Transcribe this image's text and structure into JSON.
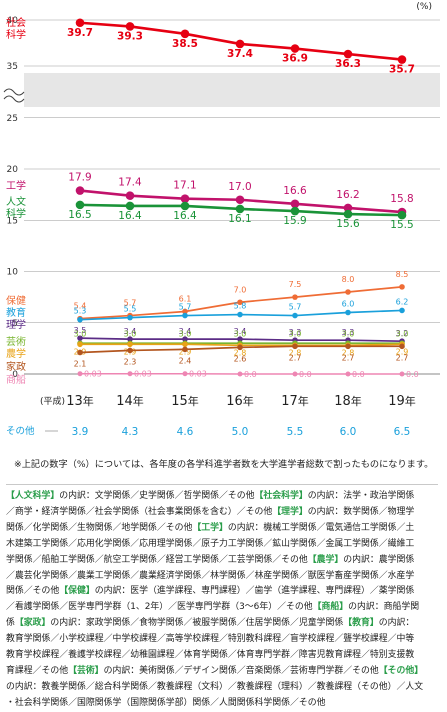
{
  "chart_data": {
    "type": "line",
    "unit": "(%)",
    "x": [
      "13年",
      "14年",
      "15年",
      "16年",
      "17年",
      "18年",
      "19年"
    ],
    "era": "(平成)",
    "yticks_upper": [
      35,
      40
    ],
    "yticks_lower": [
      0,
      5,
      10,
      15,
      20,
      25
    ],
    "ylim": [
      0,
      41
    ],
    "series": [
      {
        "name": "社会\n科学",
        "color": "#e60012",
        "values": [
          39.7,
          39.3,
          38.5,
          37.4,
          36.9,
          36.3,
          35.7
        ]
      },
      {
        "name": "工学",
        "color": "#c1126b",
        "values": [
          17.9,
          17.4,
          17.1,
          17.0,
          16.6,
          16.2,
          15.8
        ]
      },
      {
        "name": "人文\n科学",
        "color": "#1a9338",
        "values": [
          16.5,
          16.4,
          16.4,
          16.1,
          15.9,
          15.6,
          15.5
        ]
      },
      {
        "name": "保健",
        "color": "#ef6c35",
        "values": [
          5.4,
          5.7,
          6.1,
          7.0,
          7.5,
          8.0,
          8.5
        ]
      },
      {
        "name": "教育",
        "color": "#1aa0db",
        "values": [
          5.3,
          5.5,
          5.7,
          5.8,
          5.7,
          6.0,
          6.2
        ]
      },
      {
        "name": "理学",
        "color": "#5b2c86",
        "values": [
          3.5,
          3.4,
          3.4,
          3.4,
          3.3,
          3.3,
          3.2
        ]
      },
      {
        "name": "芸術",
        "color": "#79b52f",
        "values": [
          3.0,
          3.0,
          3.0,
          3.0,
          3.0,
          3.0,
          3.0
        ]
      },
      {
        "name": "農学",
        "color": "#e8a317",
        "values": [
          2.9,
          2.9,
          2.9,
          2.8,
          2.8,
          2.8,
          2.9
        ]
      },
      {
        "name": "家政",
        "color": "#b3561f",
        "values": [
          2.1,
          2.3,
          2.4,
          2.6,
          2.7,
          2.7,
          2.7
        ]
      },
      {
        "name": "商船",
        "color": "#ee86b3",
        "values": [
          0.03,
          0.03,
          0.03,
          0.0,
          0.0,
          0.0,
          0.0
        ]
      }
    ],
    "other": {
      "name": "その他",
      "values": [
        3.9,
        4.3,
        4.6,
        5.0,
        5.5,
        6.0,
        6.5
      ]
    }
  },
  "display": {
    "social": [
      "39.7",
      "39.3",
      "38.5",
      "37.4",
      "36.9",
      "36.3",
      "35.7"
    ],
    "eng": [
      "17.9",
      "17.4",
      "17.1",
      "17.0",
      "16.6",
      "16.2",
      "15.8"
    ],
    "hum": [
      "16.5",
      "16.4",
      "16.4",
      "16.1",
      "15.9",
      "15.6",
      "15.5"
    ],
    "health": [
      "5.4",
      "5.7",
      "6.1",
      "7.0",
      "7.5",
      "8.0",
      "8.5"
    ],
    "edu": [
      "5.3",
      "5.5",
      "5.7",
      "5.8",
      "5.7",
      "6.0",
      "6.2"
    ],
    "sci": [
      "3.5",
      "3.4",
      "3.4",
      "3.4",
      "3.3",
      "3.3",
      "3.2"
    ],
    "art": [
      "3.0",
      "3.0",
      "3.0",
      "3.0",
      "3.0",
      "3.0",
      "3.0"
    ],
    "agr": [
      "2.9",
      "2.9",
      "2.9",
      "2.8",
      "2.8",
      "2.8",
      "2.9"
    ],
    "home": [
      "2.1",
      "2.3",
      "2.4",
      "2.6",
      "2.7",
      "2.7",
      "2.7"
    ],
    "merc": [
      "0.03",
      "0.03",
      "0.03",
      "0.0",
      "0.0",
      "0.0",
      "0.0"
    ],
    "other": [
      "3.9",
      "4.3",
      "4.6",
      "5.0",
      "5.5",
      "6.0",
      "6.5"
    ]
  },
  "note": "※上記の数字（%）については、各年度の各学科進学者数を大学進学者総数で割ったものになります。",
  "legend_lines": [
    "【人文科学】の内訳：文学関係／史学関係／哲学関係／その他【社会科学】の内訳：法学・政治学関係",
    "／商学・経済学関係／社会学関係（社会事業関係を含む）／その他【理学】の内訳：数学関係／物理学",
    "関係／化学関係／生物関係／地学関係／その他【工学】の内訳：機械工学関係／電気通信工学関係／土",
    "木建築工学関係／応用化学関係／応用理学関係／原子力工学関係／鉱山学関係／金属工学関係／繊維工",
    "学関係／船舶工学関係／航空工学関係／経営工学関係／工芸学関係／その他【農学】の内訳：農学関係",
    "／農芸化学関係／農業工学関係／農業経済学関係／林学関係／林産学関係／獣医学畜産学関係／水産学",
    "関係／その他【保健】の内訳：医学（進学課程、専門課程）／歯学（進学課程、専門課程）／薬学関係",
    "／看護学関係／医学専門学群（1、2年）／医学専門学群（3〜6年）／その他【商船】の内訳：商船学関",
    "係【家政】の内訳：家政学関係／食物学関係／被服学関係／住居学関係／児童学関係【教育】の内訳：",
    "教育学関係／小学校課程／中学校課程／高等学校課程／特別教科課程／盲学校課程／聾学校課程／中等",
    "教育学校課程／養護学校課程／幼稚園課程／体育学関係／体育専門学群／障害児教育課程／特別支援教",
    "育課程／その他【芸術】の内訳：美術関係／デザイン関係／音楽関係／芸術専門学群／その他【その他】",
    "の内訳：教養学関係／総合科学関係／教養課程（文科）／教養課程（理科）／教養課程（その他）／人文",
    "・社会科学関係／国際関係学（国際関係学部）関係／人間関係科学関係／その他"
  ]
}
